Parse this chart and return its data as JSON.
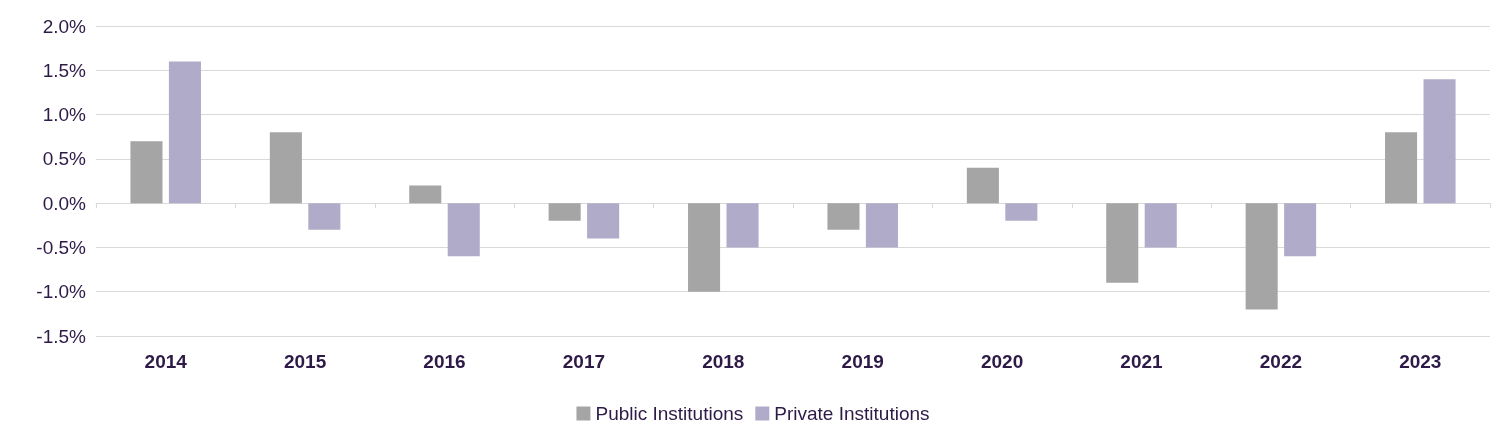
{
  "chart_data": {
    "type": "bar",
    "categories": [
      "2014",
      "2015",
      "2016",
      "2017",
      "2018",
      "2019",
      "2020",
      "2021",
      "2022",
      "2023"
    ],
    "series": [
      {
        "name": "Public Institutions",
        "color": "#a5a5a5",
        "values": [
          0.7,
          0.8,
          0.2,
          -0.2,
          -1.0,
          -0.3,
          0.4,
          -0.9,
          -1.2,
          0.8
        ]
      },
      {
        "name": "Private Institutions",
        "color": "#b0abc9",
        "values": [
          1.6,
          -0.3,
          -0.6,
          -0.4,
          -0.5,
          -0.5,
          -0.2,
          -0.5,
          -0.6,
          1.4
        ]
      }
    ],
    "ylim": [
      -1.5,
      2.0
    ],
    "yticks": [
      {
        "value": -1.5,
        "label": "-1.5%"
      },
      {
        "value": -1.0,
        "label": "-1.0%"
      },
      {
        "value": -0.5,
        "label": "-0.5%"
      },
      {
        "value": 0,
        "label": "0.0%"
      },
      {
        "value": 0.5,
        "label": "0.5%"
      },
      {
        "value": 1.0,
        "label": "1.0%"
      },
      {
        "value": 1.5,
        "label": "1.5%"
      },
      {
        "value": 2.0,
        "label": "2.0%"
      }
    ],
    "grid": "y",
    "legend": "bottom"
  }
}
